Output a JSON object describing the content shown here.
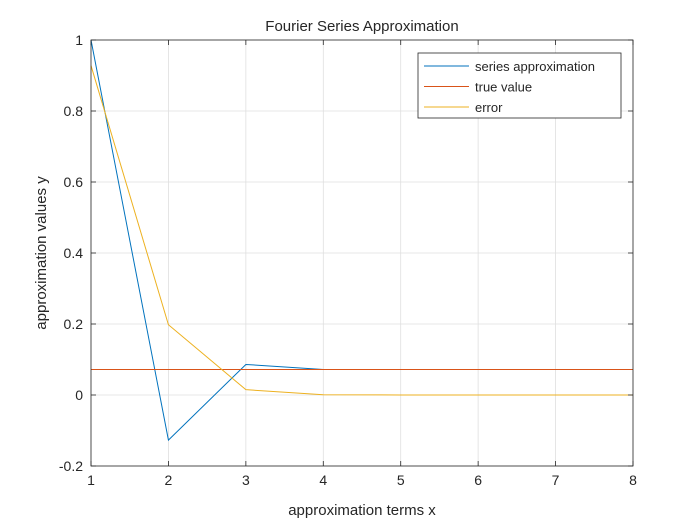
{
  "chart_data": {
    "type": "line",
    "title": "Fourier Series Approximation",
    "xlabel": "approximation terms x",
    "ylabel": "approximation values y",
    "xlim": [
      1,
      8
    ],
    "ylim": [
      -0.2,
      1
    ],
    "xticks": [
      "1",
      "2",
      "3",
      "4",
      "5",
      "6",
      "7",
      "8"
    ],
    "xtick_values": [
      1,
      2,
      3,
      4,
      5,
      6,
      7,
      8
    ],
    "yticks": [
      "-0.2",
      "0",
      "0.2",
      "0.4",
      "0.6",
      "0.8",
      "1"
    ],
    "ytick_values": [
      -0.2,
      0,
      0.2,
      0.4,
      0.6,
      0.8,
      1
    ],
    "grid": true,
    "legend_position": "top-right",
    "x": [
      1,
      2,
      3,
      4,
      5,
      6,
      7,
      8
    ],
    "series": [
      {
        "name": "series approximation",
        "color": "#0072bd",
        "values": [
          1.0,
          -0.127,
          0.086,
          0.072,
          0.0717,
          0.0717,
          0.0717,
          0.0717
        ]
      },
      {
        "name": "true value",
        "color": "#d95319",
        "values": [
          0.0717,
          0.0717,
          0.0717,
          0.0717,
          0.0717,
          0.0717,
          0.0717,
          0.0717
        ]
      },
      {
        "name": "error",
        "color": "#edb120",
        "values": [
          0.928,
          0.198,
          0.015,
          0.0008,
          0.0001,
          0.0,
          0.0,
          0.0
        ]
      }
    ]
  }
}
